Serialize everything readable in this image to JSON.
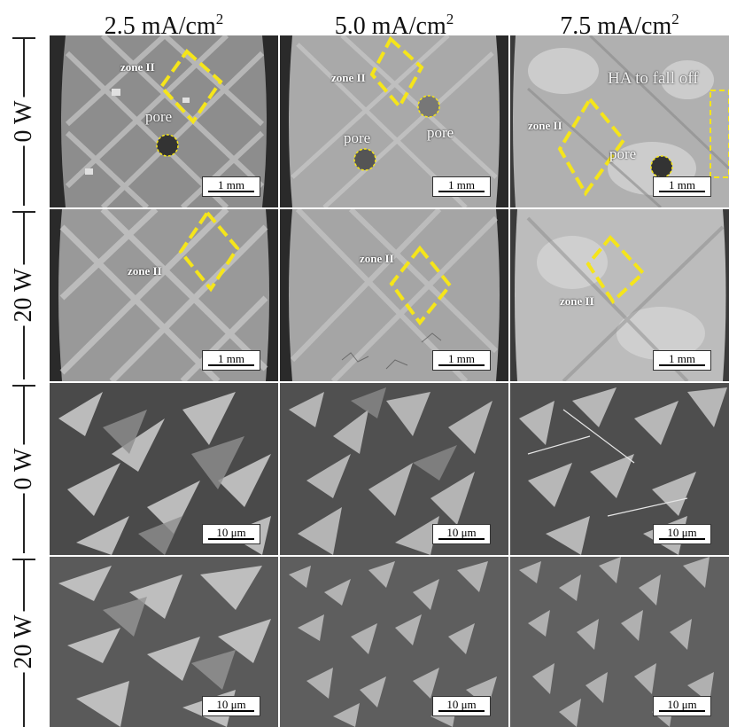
{
  "columns": [
    {
      "value": "2.5 mA/cm",
      "exp": "2"
    },
    {
      "value": "5.0 mA/cm",
      "exp": "2"
    },
    {
      "value": "7.5 mA/cm",
      "exp": "2"
    }
  ],
  "rows": [
    "0 W",
    "20 W",
    "0 W",
    "20 W"
  ],
  "scale_mm": "1 mm",
  "scale_um": "10 μm",
  "annotations": {
    "zone": "zone II",
    "pore": "pore",
    "fall_off": "HA to fall off"
  },
  "colors": {
    "highlight": "#f5e51a",
    "background": "#ffffff"
  }
}
